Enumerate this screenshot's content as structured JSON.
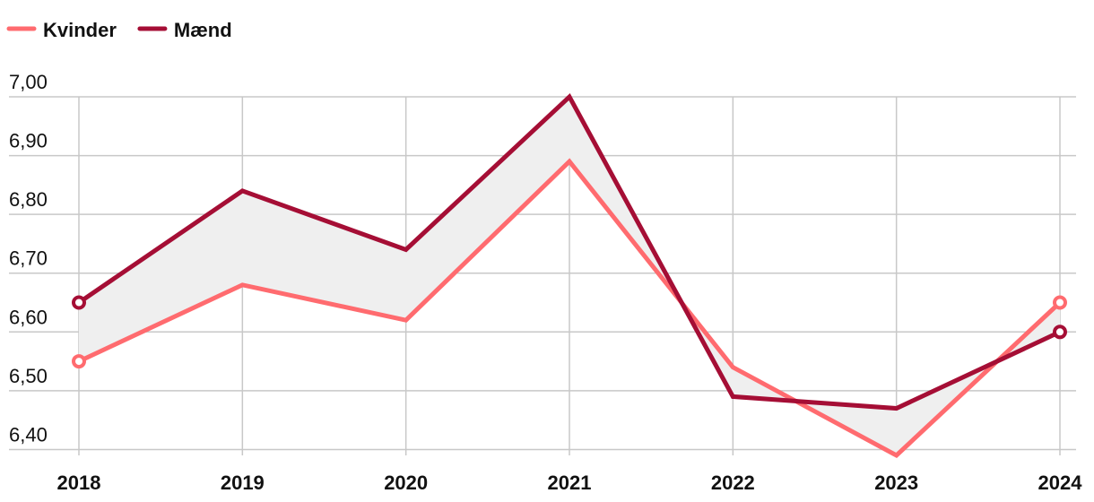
{
  "chart_data": {
    "type": "line",
    "categories": [
      "2018",
      "2019",
      "2020",
      "2021",
      "2022",
      "2023",
      "2024"
    ],
    "series": [
      {
        "name": "Kvinder",
        "color": "#ff6b6f",
        "values": [
          6.55,
          6.68,
          6.62,
          6.89,
          6.54,
          6.39,
          6.65
        ]
      },
      {
        "name": "Mænd",
        "color": "#a50e35",
        "values": [
          6.65,
          6.84,
          6.74,
          7.0,
          6.49,
          6.47,
          6.6
        ]
      }
    ],
    "ylim": [
      6.39,
      7.0
    ],
    "yticks": [
      {
        "value": 6.4,
        "label": "6,40"
      },
      {
        "value": 6.5,
        "label": "6,50"
      },
      {
        "value": 6.6,
        "label": "6,60"
      },
      {
        "value": 6.7,
        "label": "6,70"
      },
      {
        "value": 6.8,
        "label": "6,80"
      },
      {
        "value": 6.9,
        "label": "6,90"
      },
      {
        "value": 7.0,
        "label": "7,00"
      }
    ],
    "grid": true,
    "legend": "top-left"
  }
}
